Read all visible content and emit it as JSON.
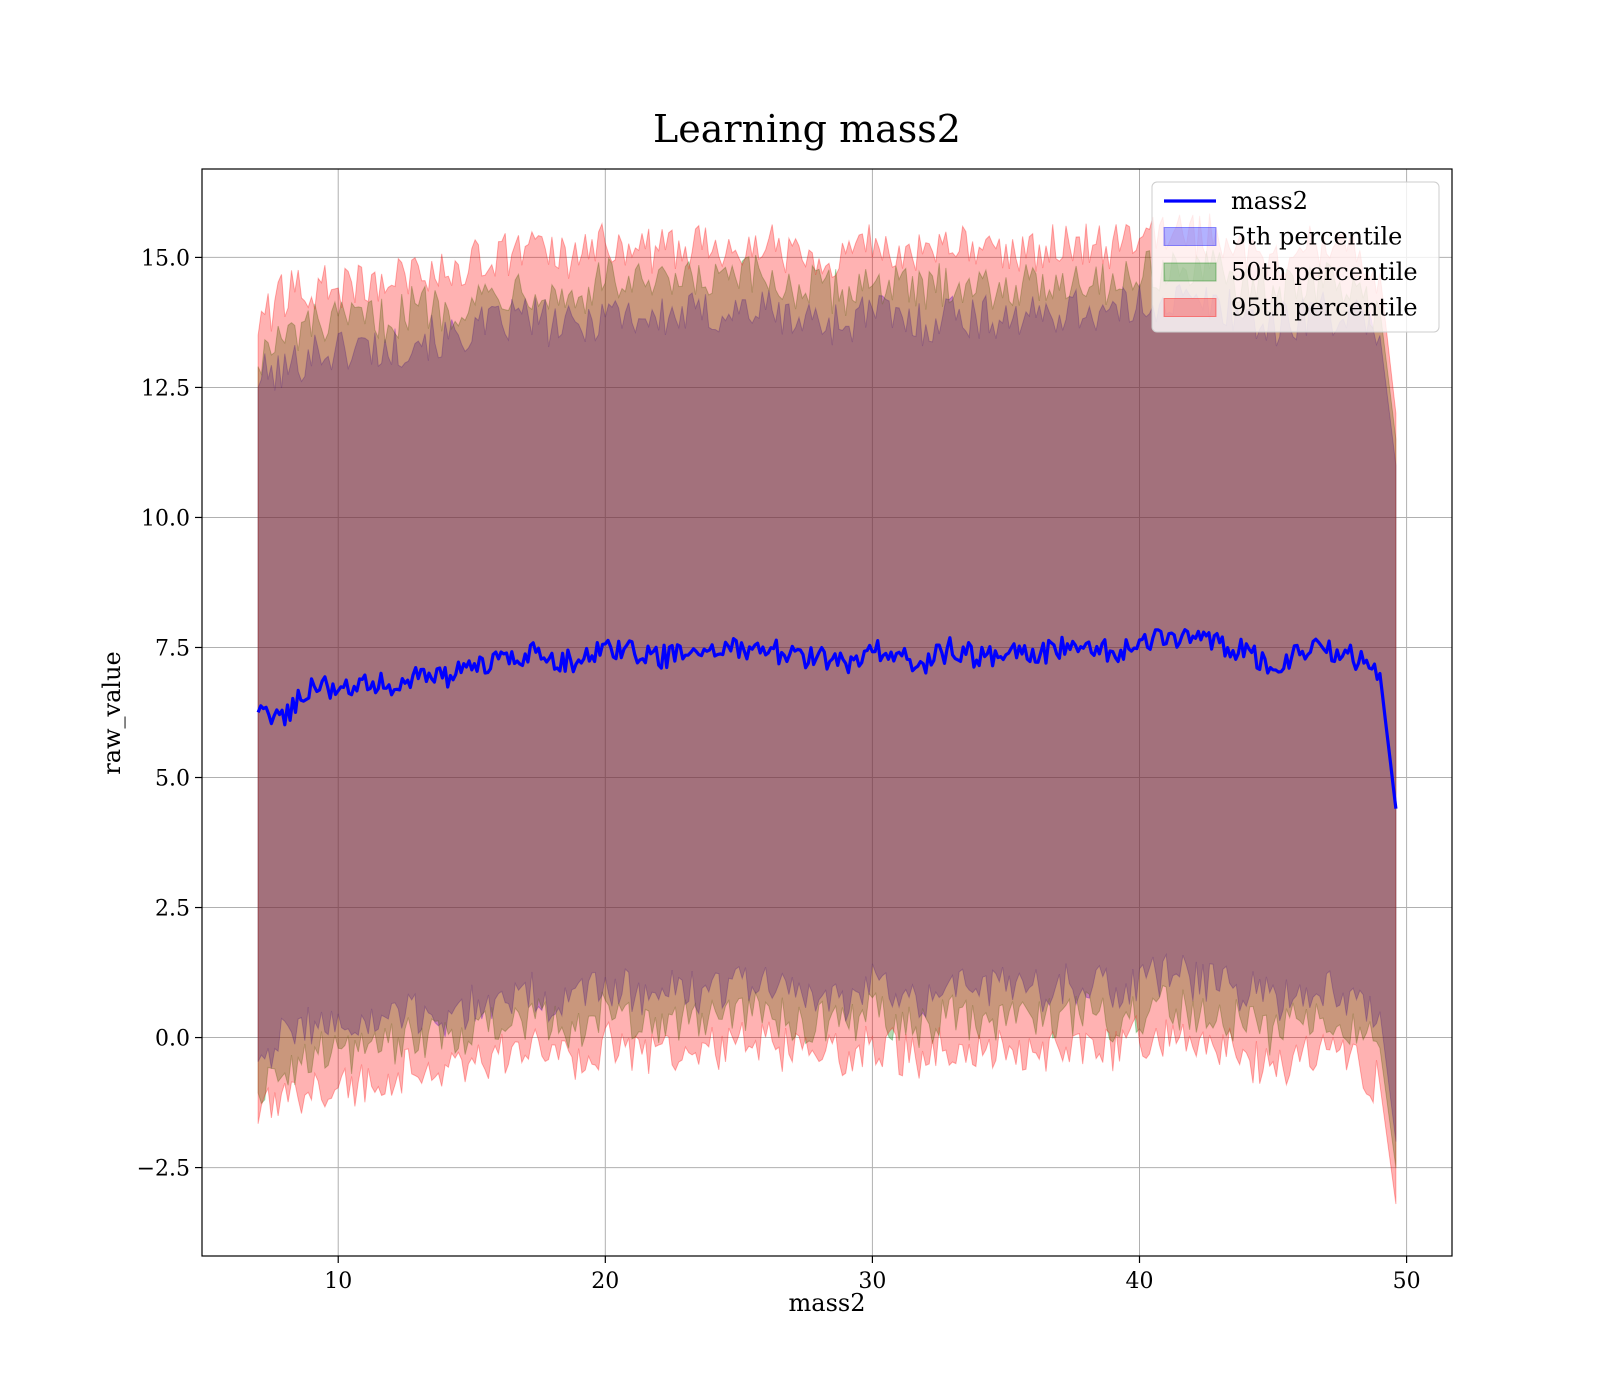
{
  "chart_data": {
    "type": "area",
    "title": "Learning mass2",
    "xlabel": "mass2",
    "ylabel": "raw_value",
    "xlim": [
      4.9,
      51.7
    ],
    "ylim": [
      -4.2,
      16.7
    ],
    "xticks": [
      10,
      20,
      30,
      40,
      50
    ],
    "yticks": [
      -2.5,
      0.0,
      2.5,
      5.0,
      7.5,
      10.0,
      12.5,
      15.0
    ],
    "ytick_labels": [
      "−2.5",
      "0.0",
      "2.5",
      "5.0",
      "7.5",
      "10.0",
      "12.5",
      "15.0"
    ],
    "grid": true,
    "legend_position": "top-right",
    "x": [
      7,
      8,
      9,
      10,
      11,
      12,
      13,
      14,
      15,
      16,
      17,
      18,
      19,
      20,
      21,
      22,
      23,
      24,
      25,
      26,
      27,
      28,
      29,
      30,
      31,
      32,
      33,
      34,
      35,
      36,
      37,
      38,
      39,
      40,
      41,
      42,
      43,
      44,
      45,
      46,
      47,
      48,
      49,
      49.6
    ],
    "series": [
      {
        "name": "mass2",
        "kind": "line",
        "color": "#0000ff",
        "values": [
          6.2,
          6.2,
          6.8,
          6.7,
          6.8,
          6.8,
          7.0,
          6.9,
          7.1,
          7.2,
          7.4,
          7.3,
          7.2,
          7.5,
          7.4,
          7.3,
          7.4,
          7.4,
          7.5,
          7.5,
          7.3,
          7.3,
          7.2,
          7.5,
          7.3,
          7.2,
          7.5,
          7.3,
          7.4,
          7.3,
          7.5,
          7.5,
          7.4,
          7.6,
          7.7,
          7.6,
          7.6,
          7.4,
          7.1,
          7.4,
          7.5,
          7.3,
          7.0,
          4.4
        ]
      },
      {
        "name": "5th percentile",
        "kind": "band",
        "color": "#0000ff",
        "low": [
          -0.3,
          0.0,
          0.3,
          0.2,
          0.2,
          0.4,
          0.4,
          0.4,
          0.6,
          0.7,
          0.9,
          0.7,
          0.7,
          1.0,
          0.9,
          0.8,
          0.9,
          0.9,
          1.0,
          1.1,
          0.8,
          0.8,
          0.7,
          1.0,
          0.9,
          0.8,
          1.1,
          0.9,
          1.0,
          0.9,
          1.0,
          1.1,
          0.9,
          1.0,
          1.2,
          1.1,
          1.1,
          0.9,
          0.7,
          0.9,
          1.0,
          0.8,
          0.5,
          -2.0
        ],
        "high": [
          12.7,
          12.8,
          13.2,
          13.2,
          13.3,
          13.2,
          13.5,
          13.4,
          13.6,
          13.7,
          13.9,
          13.7,
          13.6,
          14.0,
          13.9,
          13.8,
          13.9,
          13.9,
          14.0,
          14.0,
          13.8,
          13.8,
          13.7,
          14.0,
          13.8,
          13.7,
          14.0,
          13.8,
          13.9,
          13.8,
          14.0,
          14.0,
          13.9,
          14.1,
          14.2,
          14.1,
          14.1,
          13.9,
          13.6,
          13.9,
          14.0,
          13.8,
          13.5,
          11.0
        ]
      },
      {
        "name": "50th percentile",
        "kind": "band",
        "color": "#008000",
        "low": [
          -0.9,
          -0.6,
          -0.3,
          -0.3,
          -0.2,
          -0.1,
          0.0,
          0.0,
          0.1,
          0.3,
          0.4,
          0.2,
          0.2,
          0.5,
          0.4,
          0.3,
          0.4,
          0.4,
          0.5,
          0.5,
          0.3,
          0.3,
          0.2,
          0.5,
          0.3,
          0.2,
          0.5,
          0.3,
          0.4,
          0.3,
          0.4,
          0.5,
          0.3,
          0.5,
          0.6,
          0.5,
          0.5,
          0.2,
          0.0,
          0.3,
          0.4,
          0.2,
          -0.2,
          -2.5
        ],
        "high": [
          13.1,
          13.4,
          13.7,
          13.7,
          13.8,
          13.8,
          14.1,
          14.0,
          14.2,
          14.3,
          14.5,
          14.3,
          14.2,
          14.6,
          14.5,
          14.4,
          14.5,
          14.5,
          14.6,
          14.6,
          14.4,
          14.4,
          14.3,
          14.6,
          14.4,
          14.3,
          14.6,
          14.4,
          14.5,
          14.4,
          14.6,
          14.6,
          14.5,
          14.7,
          14.8,
          14.7,
          14.7,
          14.5,
          14.2,
          14.5,
          14.6,
          14.3,
          14.0,
          11.5
        ]
      },
      {
        "name": "95th percentile",
        "kind": "band",
        "color": "#ff0000",
        "low": [
          -1.5,
          -1.3,
          -0.9,
          -0.9,
          -0.9,
          -0.7,
          -0.6,
          -0.6,
          -0.4,
          -0.4,
          -0.2,
          -0.3,
          -0.4,
          -0.1,
          -0.2,
          -0.3,
          -0.2,
          -0.2,
          -0.1,
          -0.1,
          -0.3,
          -0.3,
          -0.4,
          -0.1,
          -0.3,
          -0.4,
          -0.1,
          -0.3,
          -0.2,
          -0.3,
          -0.2,
          -0.1,
          -0.2,
          0.0,
          0.0,
          -0.1,
          -0.1,
          -0.4,
          -0.6,
          -0.4,
          -0.3,
          -0.5,
          -0.9,
          -3.2
        ],
        "high": [
          13.7,
          14.3,
          14.4,
          14.4,
          14.5,
          14.5,
          14.8,
          14.7,
          14.9,
          15.0,
          15.2,
          15.0,
          14.9,
          15.3,
          15.2,
          15.1,
          15.2,
          15.2,
          15.3,
          15.3,
          15.1,
          15.1,
          15.0,
          15.3,
          15.1,
          15.0,
          15.3,
          15.1,
          15.2,
          15.1,
          15.3,
          15.3,
          15.2,
          15.4,
          15.5,
          15.4,
          15.4,
          15.2,
          14.9,
          15.2,
          15.3,
          15.0,
          14.7,
          12.0
        ]
      }
    ]
  }
}
